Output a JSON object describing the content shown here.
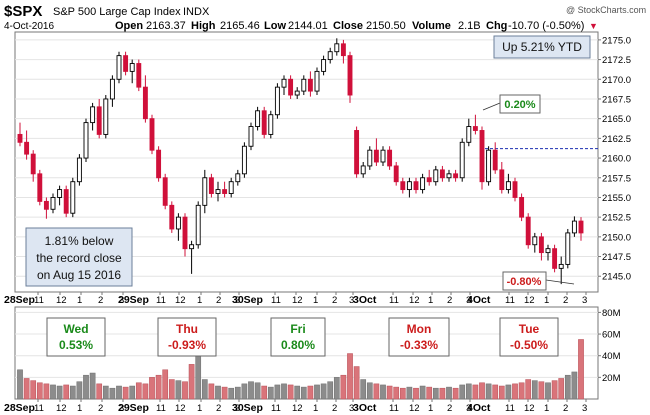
{
  "header": {
    "symbol": "$SPX",
    "name": "S&P 500 Large Cap Index",
    "exchange": "INDX",
    "date": "4-Oct-2016",
    "open_label": "Open",
    "open": "2163.37",
    "high_label": "High",
    "high": "2165.46",
    "low_label": "Low",
    "low": "2144.01",
    "close_label": "Close",
    "close": "2150.50",
    "volume_label": "Volume",
    "volume": "2.1B",
    "chg_label": "Chg",
    "chg": "-10.70 (-0.50%)",
    "chg_arrow": "▼",
    "watermark": "@ StockCharts.com"
  },
  "annotations": {
    "ytd": "Up 5.21% YTD",
    "record_line1": "1.81% below",
    "record_line2": "the record close",
    "record_line3": "on Aug 15 2016",
    "high_note": "0.20%",
    "low_note": "-0.80%"
  },
  "day_boxes": [
    {
      "day": "Wed",
      "pct": "0.53%",
      "color": "#1a8a1a"
    },
    {
      "day": "Thu",
      "pct": "-0.93%",
      "color": "#cc1c1c"
    },
    {
      "day": "Fri",
      "pct": "0.80%",
      "color": "#1a8a1a"
    },
    {
      "day": "Mon",
      "pct": "-0.33%",
      "color": "#cc1c1c"
    },
    {
      "day": "Tue",
      "pct": "-0.50%",
      "color": "#cc1c1c"
    }
  ],
  "colors": {
    "up_candle": "#000000",
    "down_candle": "#d0103a",
    "volume_up": "#8c8c8c",
    "volume_down": "#d9747a",
    "reference_line": "#1b2fb0",
    "gain_text": "#1a8a1a",
    "loss_text": "#cc1c1c",
    "annotation_fill": "#dde6f2",
    "annotation_border": "#6b7f99"
  },
  "chart_data": {
    "type": "candlestick",
    "price_axis": {
      "ylim": [
        2143,
        2176
      ],
      "ticks": [
        2145.0,
        2147.5,
        2150.0,
        2152.5,
        2155.0,
        2157.5,
        2160.0,
        2162.5,
        2165.0,
        2167.5,
        2170.0,
        2172.5,
        2175.0
      ],
      "tick_labels": [
        "2145.0",
        "2147.5",
        "2150.0",
        "2152.5",
        "2155.0",
        "2157.5",
        "2160.0",
        "2162.5",
        "2165.0",
        "2167.5",
        "2170.0",
        "2172.5",
        "2175.0"
      ]
    },
    "volume_axis": {
      "ylim": [
        0,
        85000000
      ],
      "ticks": [
        20000000,
        40000000,
        60000000,
        80000000
      ],
      "tick_labels": [
        "20M",
        "40M",
        "60M",
        "80M"
      ]
    },
    "x_labels": [
      "28Sep",
      "11",
      "12",
      "1",
      "2",
      "3",
      "29Sep",
      "11",
      "12",
      "1",
      "2",
      "3",
      "30Sep",
      "11",
      "12",
      "1",
      "2",
      "3",
      "3Oct",
      "11",
      "12",
      "1",
      "2",
      "3",
      "4Oct",
      "11",
      "12",
      "1",
      "2",
      "3"
    ],
    "reference_line": 2161.2,
    "candles": [
      [
        2163.0,
        2164.5,
        2161.5,
        2162.0
      ],
      [
        2162.0,
        2163.5,
        2159.8,
        2160.5
      ],
      [
        2160.5,
        2161.0,
        2157.0,
        2158.0
      ],
      [
        2158.0,
        2158.5,
        2154.0,
        2154.5
      ],
      [
        2154.5,
        2155.0,
        2152.3,
        2153.5
      ],
      [
        2153.5,
        2155.5,
        2153.0,
        2155.0
      ],
      [
        2155.0,
        2156.5,
        2154.0,
        2156.0
      ],
      [
        2156.0,
        2156.5,
        2152.5,
        2153.0
      ],
      [
        2153.0,
        2157.5,
        2152.5,
        2157.0
      ],
      [
        2157.0,
        2160.5,
        2156.5,
        2160.0
      ],
      [
        2160.0,
        2165.0,
        2159.5,
        2164.5
      ],
      [
        2164.5,
        2167.0,
        2163.5,
        2166.5
      ],
      [
        2166.5,
        2167.5,
        2162.5,
        2163.0
      ],
      [
        2163.0,
        2168.0,
        2162.5,
        2167.5
      ],
      [
        2167.5,
        2170.5,
        2166.5,
        2170.0
      ],
      [
        2170.0,
        2173.5,
        2169.5,
        2173.0
      ],
      [
        2173.0,
        2173.5,
        2170.5,
        2171.0
      ],
      [
        2171.0,
        2172.5,
        2169.5,
        2172.0
      ],
      [
        2172.0,
        2172.5,
        2168.5,
        2169.0
      ],
      [
        2169.0,
        2170.5,
        2164.5,
        2165.0
      ],
      [
        2165.0,
        2165.5,
        2160.5,
        2161.0
      ],
      [
        2161.0,
        2161.5,
        2157.0,
        2157.5
      ],
      [
        2157.5,
        2158.0,
        2153.5,
        2154.0
      ],
      [
        2154.0,
        2154.5,
        2150.5,
        2151.0
      ],
      [
        2151.0,
        2153.0,
        2149.5,
        2152.5
      ],
      [
        2152.5,
        2153.0,
        2147.5,
        2148.5
      ],
      [
        2148.5,
        2149.5,
        2145.3,
        2149.0
      ],
      [
        2149.0,
        2154.5,
        2148.5,
        2154.0
      ],
      [
        2154.0,
        2158.5,
        2153.0,
        2157.5
      ],
      [
        2157.5,
        2158.0,
        2155.0,
        2155.5
      ],
      [
        2155.5,
        2157.0,
        2154.5,
        2156.0
      ],
      [
        2156.0,
        2157.0,
        2155.0,
        2155.5
      ],
      [
        2155.5,
        2157.5,
        2155.0,
        2157.0
      ],
      [
        2157.0,
        2158.5,
        2156.5,
        2158.0
      ],
      [
        2158.0,
        2162.0,
        2157.5,
        2161.5
      ],
      [
        2161.5,
        2164.5,
        2161.0,
        2164.0
      ],
      [
        2164.0,
        2166.5,
        2163.5,
        2166.0
      ],
      [
        2166.0,
        2166.5,
        2162.5,
        2163.0
      ],
      [
        2163.0,
        2166.0,
        2162.5,
        2165.5
      ],
      [
        2165.5,
        2169.5,
        2165.0,
        2169.0
      ],
      [
        2169.0,
        2170.5,
        2168.0,
        2170.0
      ],
      [
        2170.0,
        2170.5,
        2167.5,
        2168.0
      ],
      [
        2168.0,
        2169.0,
        2167.5,
        2168.5
      ],
      [
        2168.5,
        2170.5,
        2168.0,
        2170.0
      ],
      [
        2170.0,
        2171.0,
        2167.8,
        2168.5
      ],
      [
        2168.5,
        2171.5,
        2168.0,
        2171.0
      ],
      [
        2171.0,
        2173.0,
        2170.5,
        2172.5
      ],
      [
        2172.5,
        2174.0,
        2172.0,
        2173.5
      ],
      [
        2173.5,
        2175.2,
        2173.0,
        2174.5
      ],
      [
        2174.5,
        2175.0,
        2172.0,
        2173.0
      ],
      [
        2173.0,
        2173.5,
        2167.0,
        2168.0
      ],
      [
        2163.5,
        2164.0,
        2157.5,
        2158.0
      ],
      [
        2158.0,
        2159.5,
        2157.5,
        2159.0
      ],
      [
        2159.0,
        2161.5,
        2158.5,
        2161.0
      ],
      [
        2161.0,
        2162.5,
        2159.0,
        2159.5
      ],
      [
        2159.5,
        2161.5,
        2159.0,
        2161.0
      ],
      [
        2161.0,
        2161.5,
        2158.5,
        2159.0
      ],
      [
        2159.0,
        2159.5,
        2156.5,
        2157.0
      ],
      [
        2157.0,
        2157.5,
        2155.5,
        2156.0
      ],
      [
        2156.0,
        2157.5,
        2155.0,
        2157.0
      ],
      [
        2157.0,
        2157.5,
        2155.5,
        2156.0
      ],
      [
        2156.0,
        2158.0,
        2155.5,
        2157.5
      ],
      [
        2157.5,
        2158.5,
        2156.5,
        2157.0
      ],
      [
        2157.0,
        2159.0,
        2156.5,
        2158.5
      ],
      [
        2158.5,
        2159.0,
        2157.0,
        2157.5
      ],
      [
        2157.5,
        2158.5,
        2157.0,
        2158.0
      ],
      [
        2158.0,
        2158.5,
        2157.0,
        2157.5
      ],
      [
        2157.5,
        2162.5,
        2157.0,
        2162.0
      ],
      [
        2162.0,
        2165.0,
        2161.5,
        2164.0
      ],
      [
        2164.0,
        2165.5,
        2163.0,
        2163.5
      ],
      [
        2163.5,
        2164.0,
        2156.0,
        2157.0
      ],
      [
        2157.0,
        2161.5,
        2156.5,
        2161.0
      ],
      [
        2161.0,
        2162.0,
        2158.0,
        2158.5
      ],
      [
        2158.5,
        2159.5,
        2155.5,
        2156.0
      ],
      [
        2156.0,
        2158.0,
        2155.5,
        2157.0
      ],
      [
        2157.0,
        2157.5,
        2154.5,
        2155.0
      ],
      [
        2155.0,
        2155.5,
        2152.0,
        2152.5
      ],
      [
        2152.5,
        2153.0,
        2148.5,
        2149.0
      ],
      [
        2149.0,
        2150.5,
        2148.0,
        2150.0
      ],
      [
        2150.0,
        2150.5,
        2147.0,
        2148.0
      ],
      [
        2148.0,
        2149.0,
        2147.0,
        2148.5
      ],
      [
        2148.5,
        2149.0,
        2145.5,
        2146.0
      ],
      [
        2146.0,
        2147.5,
        2144.0,
        2146.5
      ],
      [
        2146.5,
        2151.0,
        2146.0,
        2150.5
      ],
      [
        2150.5,
        2152.6,
        2150.0,
        2152.0
      ],
      [
        2152.0,
        2152.5,
        2149.5,
        2150.5
      ]
    ],
    "volume": [
      [
        27000000,
        0
      ],
      [
        19000000,
        1
      ],
      [
        17000000,
        1
      ],
      [
        15000000,
        1
      ],
      [
        14000000,
        1
      ],
      [
        13000000,
        0
      ],
      [
        12000000,
        0
      ],
      [
        13000000,
        1
      ],
      [
        12000000,
        0
      ],
      [
        16000000,
        0
      ],
      [
        22000000,
        0
      ],
      [
        24000000,
        0
      ],
      [
        14000000,
        1
      ],
      [
        12000000,
        0
      ],
      [
        10000000,
        0
      ],
      [
        12000000,
        0
      ],
      [
        11000000,
        1
      ],
      [
        12000000,
        0
      ],
      [
        15000000,
        1
      ],
      [
        14000000,
        1
      ],
      [
        20000000,
        1
      ],
      [
        22000000,
        1
      ],
      [
        27000000,
        1
      ],
      [
        18000000,
        1
      ],
      [
        17000000,
        0
      ],
      [
        16000000,
        1
      ],
      [
        32000000,
        1
      ],
      [
        48000000,
        0
      ],
      [
        18000000,
        0
      ],
      [
        14000000,
        1
      ],
      [
        12000000,
        0
      ],
      [
        11000000,
        1
      ],
      [
        10000000,
        0
      ],
      [
        11000000,
        0
      ],
      [
        14000000,
        0
      ],
      [
        16000000,
        0
      ],
      [
        15000000,
        0
      ],
      [
        12000000,
        1
      ],
      [
        11000000,
        0
      ],
      [
        13000000,
        0
      ],
      [
        14000000,
        0
      ],
      [
        13000000,
        1
      ],
      [
        12000000,
        0
      ],
      [
        11000000,
        0
      ],
      [
        12000000,
        1
      ],
      [
        13000000,
        0
      ],
      [
        14000000,
        0
      ],
      [
        16000000,
        0
      ],
      [
        20000000,
        0
      ],
      [
        22000000,
        1
      ],
      [
        42000000,
        1
      ],
      [
        30000000,
        1
      ],
      [
        18000000,
        0
      ],
      [
        15000000,
        0
      ],
      [
        14000000,
        1
      ],
      [
        13000000,
        0
      ],
      [
        12000000,
        1
      ],
      [
        11000000,
        1
      ],
      [
        10000000,
        1
      ],
      [
        11000000,
        0
      ],
      [
        10000000,
        1
      ],
      [
        12000000,
        0
      ],
      [
        11000000,
        1
      ],
      [
        10000000,
        0
      ],
      [
        10000000,
        1
      ],
      [
        11000000,
        0
      ],
      [
        10000000,
        1
      ],
      [
        13000000,
        0
      ],
      [
        14000000,
        0
      ],
      [
        13000000,
        1
      ],
      [
        15000000,
        1
      ],
      [
        14000000,
        0
      ],
      [
        13000000,
        1
      ],
      [
        12000000,
        1
      ],
      [
        13000000,
        0
      ],
      [
        14000000,
        1
      ],
      [
        15000000,
        1
      ],
      [
        18000000,
        1
      ],
      [
        17000000,
        0
      ],
      [
        16000000,
        1
      ],
      [
        15000000,
        0
      ],
      [
        17000000,
        1
      ],
      [
        19000000,
        1
      ],
      [
        22000000,
        0
      ],
      [
        25000000,
        0
      ],
      [
        55000000,
        1
      ]
    ]
  }
}
